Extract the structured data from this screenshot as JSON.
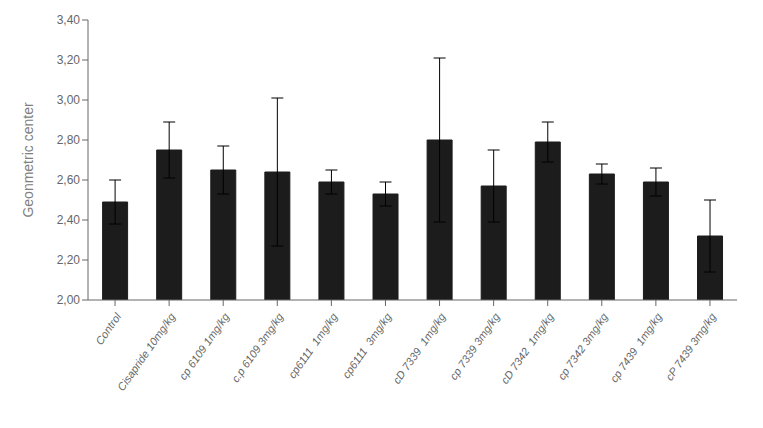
{
  "chart_data": {
    "type": "bar",
    "categories": [
      "Control",
      "Cisapride 10mg/kg",
      "cp 6109 1mg/kg",
      "c.p 6109 3mg/kg",
      "cp6111  1mg/kg",
      "cp6111  3mg/kg",
      "cD 7339  1mg/kg",
      "cp 7339 3mg/kg",
      "cD 7342  1mg/kg",
      "cp 7342 3mg/kg",
      "cp 7439  1mg/kg",
      "cP 7439 3mg/kg"
    ],
    "values": [
      2.49,
      2.75,
      2.65,
      2.64,
      2.59,
      2.53,
      2.8,
      2.57,
      2.79,
      2.63,
      2.59,
      2.32
    ],
    "errors": [
      0.11,
      0.14,
      0.12,
      0.37,
      0.06,
      0.06,
      0.41,
      0.18,
      0.1,
      0.05,
      0.07,
      0.18
    ],
    "color": "#1c1c1c",
    "ylabel": "Geonmetric center",
    "ylim": [
      2.0,
      3.4
    ],
    "yticks": [
      {
        "value": 2.0,
        "label": "2,00"
      },
      {
        "value": 2.2,
        "label": "2,20"
      },
      {
        "value": 2.4,
        "label": "2,40"
      },
      {
        "value": 2.6,
        "label": "2,60"
      },
      {
        "value": 2.8,
        "label": "2,80"
      },
      {
        "value": 3.0,
        "label": "3,00"
      },
      {
        "value": 3.2,
        "label": "3,20"
      },
      {
        "value": 3.4,
        "label": "3,40"
      }
    ],
    "grid": false
  }
}
